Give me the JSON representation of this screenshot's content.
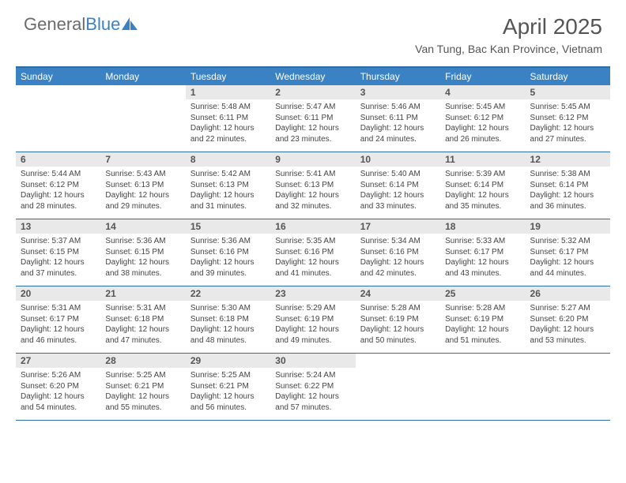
{
  "logo": {
    "text_gray": "General",
    "text_blue": "Blue"
  },
  "title": "April 2025",
  "location": "Van Tung, Bac Kan Province, Vietnam",
  "colors": {
    "header_bg": "#3b82c4",
    "header_border": "#2d6da8",
    "day_number_bg": "#e9e9e9",
    "text_gray": "#555555",
    "text_body": "#444444",
    "logo_gray": "#6b6b6b",
    "logo_blue": "#3b82c4"
  },
  "weekdays": [
    "Sunday",
    "Monday",
    "Tuesday",
    "Wednesday",
    "Thursday",
    "Friday",
    "Saturday"
  ],
  "weeks": [
    [
      {
        "n": "",
        "sunrise": "",
        "sunset": "",
        "daylight": ""
      },
      {
        "n": "",
        "sunrise": "",
        "sunset": "",
        "daylight": ""
      },
      {
        "n": "1",
        "sunrise": "Sunrise: 5:48 AM",
        "sunset": "Sunset: 6:11 PM",
        "daylight": "Daylight: 12 hours and 22 minutes."
      },
      {
        "n": "2",
        "sunrise": "Sunrise: 5:47 AM",
        "sunset": "Sunset: 6:11 PM",
        "daylight": "Daylight: 12 hours and 23 minutes."
      },
      {
        "n": "3",
        "sunrise": "Sunrise: 5:46 AM",
        "sunset": "Sunset: 6:11 PM",
        "daylight": "Daylight: 12 hours and 24 minutes."
      },
      {
        "n": "4",
        "sunrise": "Sunrise: 5:45 AM",
        "sunset": "Sunset: 6:12 PM",
        "daylight": "Daylight: 12 hours and 26 minutes."
      },
      {
        "n": "5",
        "sunrise": "Sunrise: 5:45 AM",
        "sunset": "Sunset: 6:12 PM",
        "daylight": "Daylight: 12 hours and 27 minutes."
      }
    ],
    [
      {
        "n": "6",
        "sunrise": "Sunrise: 5:44 AM",
        "sunset": "Sunset: 6:12 PM",
        "daylight": "Daylight: 12 hours and 28 minutes."
      },
      {
        "n": "7",
        "sunrise": "Sunrise: 5:43 AM",
        "sunset": "Sunset: 6:13 PM",
        "daylight": "Daylight: 12 hours and 29 minutes."
      },
      {
        "n": "8",
        "sunrise": "Sunrise: 5:42 AM",
        "sunset": "Sunset: 6:13 PM",
        "daylight": "Daylight: 12 hours and 31 minutes."
      },
      {
        "n": "9",
        "sunrise": "Sunrise: 5:41 AM",
        "sunset": "Sunset: 6:13 PM",
        "daylight": "Daylight: 12 hours and 32 minutes."
      },
      {
        "n": "10",
        "sunrise": "Sunrise: 5:40 AM",
        "sunset": "Sunset: 6:14 PM",
        "daylight": "Daylight: 12 hours and 33 minutes."
      },
      {
        "n": "11",
        "sunrise": "Sunrise: 5:39 AM",
        "sunset": "Sunset: 6:14 PM",
        "daylight": "Daylight: 12 hours and 35 minutes."
      },
      {
        "n": "12",
        "sunrise": "Sunrise: 5:38 AM",
        "sunset": "Sunset: 6:14 PM",
        "daylight": "Daylight: 12 hours and 36 minutes."
      }
    ],
    [
      {
        "n": "13",
        "sunrise": "Sunrise: 5:37 AM",
        "sunset": "Sunset: 6:15 PM",
        "daylight": "Daylight: 12 hours and 37 minutes."
      },
      {
        "n": "14",
        "sunrise": "Sunrise: 5:36 AM",
        "sunset": "Sunset: 6:15 PM",
        "daylight": "Daylight: 12 hours and 38 minutes."
      },
      {
        "n": "15",
        "sunrise": "Sunrise: 5:36 AM",
        "sunset": "Sunset: 6:16 PM",
        "daylight": "Daylight: 12 hours and 39 minutes."
      },
      {
        "n": "16",
        "sunrise": "Sunrise: 5:35 AM",
        "sunset": "Sunset: 6:16 PM",
        "daylight": "Daylight: 12 hours and 41 minutes."
      },
      {
        "n": "17",
        "sunrise": "Sunrise: 5:34 AM",
        "sunset": "Sunset: 6:16 PM",
        "daylight": "Daylight: 12 hours and 42 minutes."
      },
      {
        "n": "18",
        "sunrise": "Sunrise: 5:33 AM",
        "sunset": "Sunset: 6:17 PM",
        "daylight": "Daylight: 12 hours and 43 minutes."
      },
      {
        "n": "19",
        "sunrise": "Sunrise: 5:32 AM",
        "sunset": "Sunset: 6:17 PM",
        "daylight": "Daylight: 12 hours and 44 minutes."
      }
    ],
    [
      {
        "n": "20",
        "sunrise": "Sunrise: 5:31 AM",
        "sunset": "Sunset: 6:17 PM",
        "daylight": "Daylight: 12 hours and 46 minutes."
      },
      {
        "n": "21",
        "sunrise": "Sunrise: 5:31 AM",
        "sunset": "Sunset: 6:18 PM",
        "daylight": "Daylight: 12 hours and 47 minutes."
      },
      {
        "n": "22",
        "sunrise": "Sunrise: 5:30 AM",
        "sunset": "Sunset: 6:18 PM",
        "daylight": "Daylight: 12 hours and 48 minutes."
      },
      {
        "n": "23",
        "sunrise": "Sunrise: 5:29 AM",
        "sunset": "Sunset: 6:19 PM",
        "daylight": "Daylight: 12 hours and 49 minutes."
      },
      {
        "n": "24",
        "sunrise": "Sunrise: 5:28 AM",
        "sunset": "Sunset: 6:19 PM",
        "daylight": "Daylight: 12 hours and 50 minutes."
      },
      {
        "n": "25",
        "sunrise": "Sunrise: 5:28 AM",
        "sunset": "Sunset: 6:19 PM",
        "daylight": "Daylight: 12 hours and 51 minutes."
      },
      {
        "n": "26",
        "sunrise": "Sunrise: 5:27 AM",
        "sunset": "Sunset: 6:20 PM",
        "daylight": "Daylight: 12 hours and 53 minutes."
      }
    ],
    [
      {
        "n": "27",
        "sunrise": "Sunrise: 5:26 AM",
        "sunset": "Sunset: 6:20 PM",
        "daylight": "Daylight: 12 hours and 54 minutes."
      },
      {
        "n": "28",
        "sunrise": "Sunrise: 5:25 AM",
        "sunset": "Sunset: 6:21 PM",
        "daylight": "Daylight: 12 hours and 55 minutes."
      },
      {
        "n": "29",
        "sunrise": "Sunrise: 5:25 AM",
        "sunset": "Sunset: 6:21 PM",
        "daylight": "Daylight: 12 hours and 56 minutes."
      },
      {
        "n": "30",
        "sunrise": "Sunrise: 5:24 AM",
        "sunset": "Sunset: 6:22 PM",
        "daylight": "Daylight: 12 hours and 57 minutes."
      },
      {
        "n": "",
        "sunrise": "",
        "sunset": "",
        "daylight": ""
      },
      {
        "n": "",
        "sunrise": "",
        "sunset": "",
        "daylight": ""
      },
      {
        "n": "",
        "sunrise": "",
        "sunset": "",
        "daylight": ""
      }
    ]
  ]
}
